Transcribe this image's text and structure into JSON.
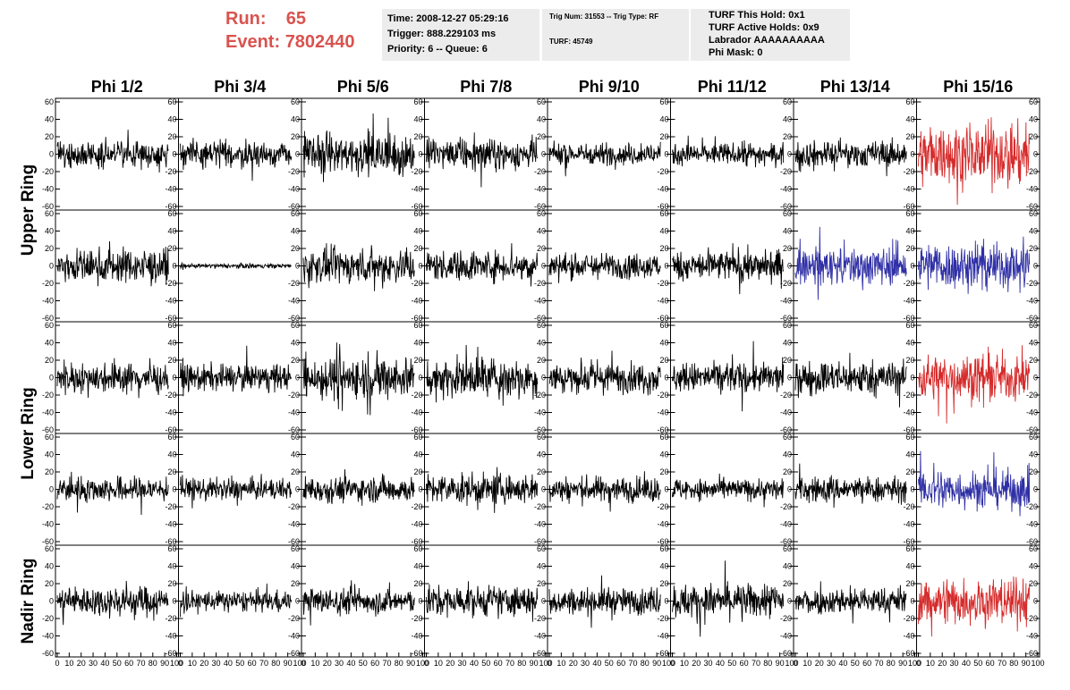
{
  "header": {
    "run_label": "Run:",
    "run_value": "65",
    "event_label": "Event:",
    "event_value": "7802440",
    "accent_color": "#d9534f"
  },
  "info_time": {
    "time": "Time: 2008-12-27 05:29:16",
    "trigger": "Trigger: 888.229103 ms",
    "priority": "Priority: 6 -- Queue: 6"
  },
  "info_trig": {
    "trig": "Trig Num: 31553 -- Trig Type: RF",
    "turf": "TURF: 45749"
  },
  "info_turf": {
    "hold": "TURF This Hold: 0x1",
    "active": "TURF Active Holds: 0x9",
    "labrador": "Labrador AAAAAAAAAA",
    "phimask": "Phi Mask: 0"
  },
  "chart_data": {
    "type": "line",
    "columns": [
      "Phi 1/2",
      "Phi 3/4",
      "Phi 5/6",
      "Phi 7/8",
      "Phi 9/10",
      "Phi 11/12",
      "Phi 13/14",
      "Phi 15/16"
    ],
    "ring_groups": [
      {
        "label": "Upper Ring",
        "rows": [
          0,
          1
        ]
      },
      {
        "label": "Lower Ring",
        "rows": [
          2,
          3
        ]
      },
      {
        "label": "Nadir Ring",
        "rows": [
          4
        ]
      }
    ],
    "ylim": [
      -60,
      60
    ],
    "yticks": [
      -60,
      -40,
      -20,
      0,
      20,
      40,
      60
    ],
    "xlim": [
      0,
      100
    ],
    "xticks": [
      0,
      10,
      20,
      30,
      40,
      50,
      60,
      70,
      80,
      90,
      100
    ],
    "trace_colors": {
      "normal": "#000000",
      "triggered": "#d62b2b",
      "hold": "#2f2fa6"
    },
    "panels": [
      [
        "normal",
        "normal",
        "normal",
        "normal",
        "normal",
        "normal",
        "normal",
        "triggered"
      ],
      [
        "normal",
        "normal",
        "normal",
        "normal",
        "normal",
        "normal",
        "hold",
        "hold"
      ],
      [
        "normal",
        "normal",
        "normal",
        "normal",
        "normal",
        "normal",
        "normal",
        "triggered"
      ],
      [
        "normal",
        "normal",
        "normal",
        "normal",
        "normal",
        "normal",
        "normal",
        "hold"
      ],
      [
        "normal",
        "normal",
        "normal",
        "normal",
        "normal",
        "normal",
        "normal",
        "triggered"
      ]
    ],
    "amplitude": [
      [
        12,
        12,
        20,
        14,
        10,
        10,
        12,
        28
      ],
      [
        16,
        2,
        16,
        14,
        12,
        14,
        18,
        22
      ],
      [
        14,
        12,
        20,
        18,
        14,
        14,
        16,
        22
      ],
      [
        12,
        10,
        12,
        14,
        12,
        10,
        12,
        18
      ],
      [
        14,
        10,
        12,
        14,
        12,
        16,
        12,
        22
      ]
    ]
  }
}
